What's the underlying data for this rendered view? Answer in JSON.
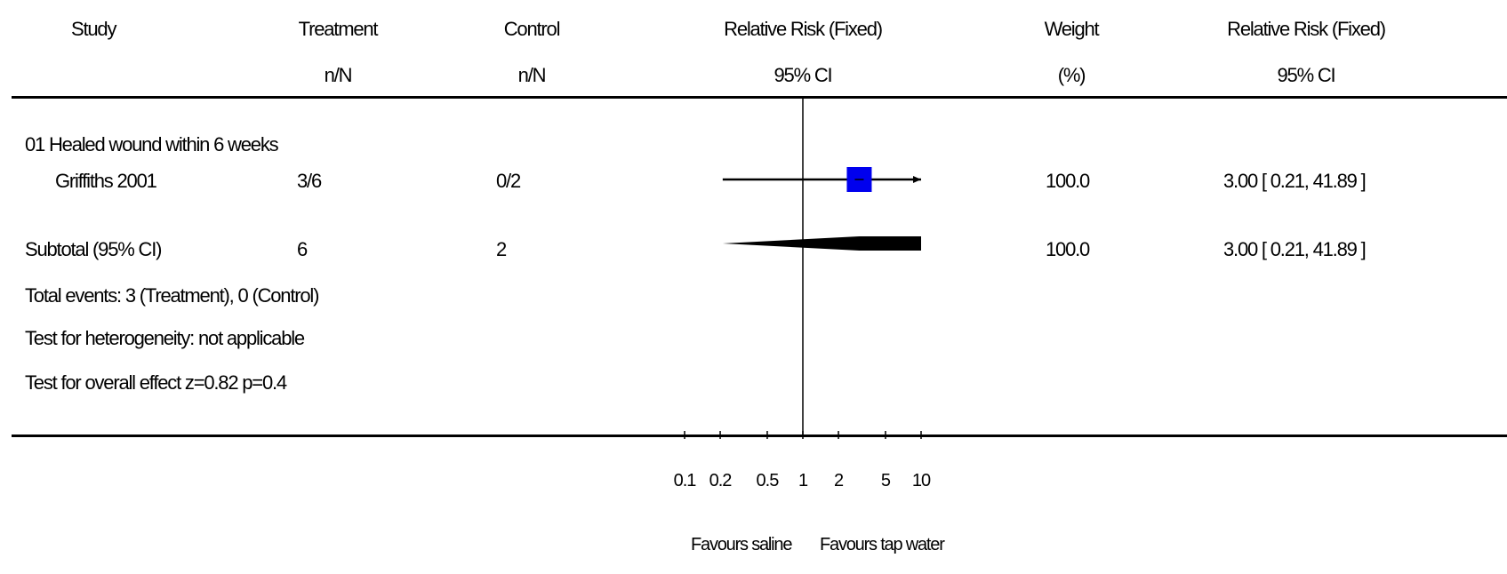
{
  "headers": {
    "study": "Study",
    "treatment": "Treatment",
    "treatment_sub": "n/N",
    "control": "Control",
    "control_sub": "n/N",
    "rr": "Relative Risk (Fixed)",
    "rr_sub": "95% CI",
    "weight": "Weight",
    "weight_sub": "(%)",
    "rr_right": "Relative Risk (Fixed)",
    "rr_right_sub": "95% CI"
  },
  "group": {
    "label": "01 Healed wound within 6 weeks"
  },
  "study_row": {
    "study": "Griffiths 2001",
    "treatment": "3/6",
    "control": "0/2",
    "weight": "100.0",
    "ci_text": "3.00 [ 0.21, 41.89 ]"
  },
  "subtotal_row": {
    "label": "Subtotal (95% CI)",
    "treatment": "6",
    "control": "2",
    "weight": "100.0",
    "ci_text": "3.00 [ 0.21, 41.89 ]"
  },
  "footnotes": {
    "events": "Total events: 3 (Treatment), 0 (Control)",
    "heterogeneity": "Test for heterogeneity: not applicable",
    "overall": "Test for overall effect z=0.82    p=0.4"
  },
  "axis": {
    "favours_left": "Favours saline",
    "favours_right": "Favours tap water"
  },
  "colors": {
    "study_marker": "#0000ee",
    "diamond": "#000000"
  },
  "chart_data": {
    "type": "forest",
    "scale": "log",
    "xlim": [
      0.1,
      10
    ],
    "ticks": [
      0.1,
      0.2,
      0.5,
      1,
      2,
      5,
      10
    ],
    "tick_labels": [
      "0.1",
      "0.2",
      "0.5",
      "1",
      "2",
      "5",
      "10"
    ],
    "reference_line": 1,
    "xlabel_left": "Favours saline",
    "xlabel_right": "Favours tap water",
    "studies": [
      {
        "name": "Griffiths 2001",
        "rr": 3.0,
        "ci_low": 0.21,
        "ci_high": 41.89,
        "weight": 100.0,
        "arrow_right": true
      }
    ],
    "subtotal": {
      "rr": 3.0,
      "ci_low": 0.21,
      "ci_high": 41.89,
      "clipped_right": true
    }
  }
}
